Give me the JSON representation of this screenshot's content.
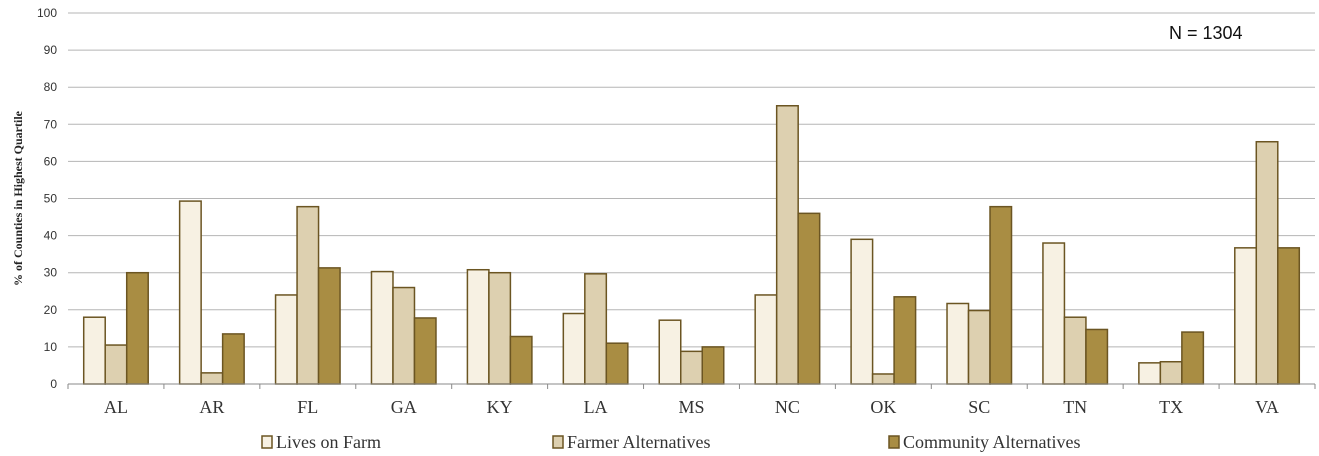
{
  "chart_data": {
    "type": "bar",
    "title": "",
    "xlabel": "",
    "ylabel": "% of Counties in Highest Quartile",
    "ylim": [
      0,
      100
    ],
    "yticks": [
      0,
      10,
      20,
      30,
      40,
      50,
      60,
      70,
      80,
      90,
      100
    ],
    "grid": true,
    "legend_position": "bottom",
    "annotation": "N = 1304",
    "categories": [
      "AL",
      "AR",
      "FL",
      "GA",
      "KY",
      "LA",
      "MS",
      "NC",
      "OK",
      "SC",
      "TN",
      "TX",
      "VA"
    ],
    "series": [
      {
        "name": "Lives on Farm",
        "color": "#f7f1e3",
        "values": [
          18,
          49.3,
          24,
          30.3,
          30.8,
          19,
          17.2,
          24,
          39,
          21.7,
          38,
          5.7,
          36.7
        ]
      },
      {
        "name": "Farmer Alternatives",
        "color": "#ddd0b0",
        "values": [
          10.5,
          3,
          47.8,
          26,
          30,
          29.7,
          8.8,
          75,
          2.7,
          19.8,
          18,
          6,
          65.3
        ]
      },
      {
        "name": "Community Alternatives",
        "color": "#a98d43",
        "values": [
          30,
          13.5,
          31.3,
          17.8,
          12.8,
          11,
          10,
          46,
          23.5,
          47.8,
          14.7,
          14,
          36.7
        ]
      }
    ]
  }
}
